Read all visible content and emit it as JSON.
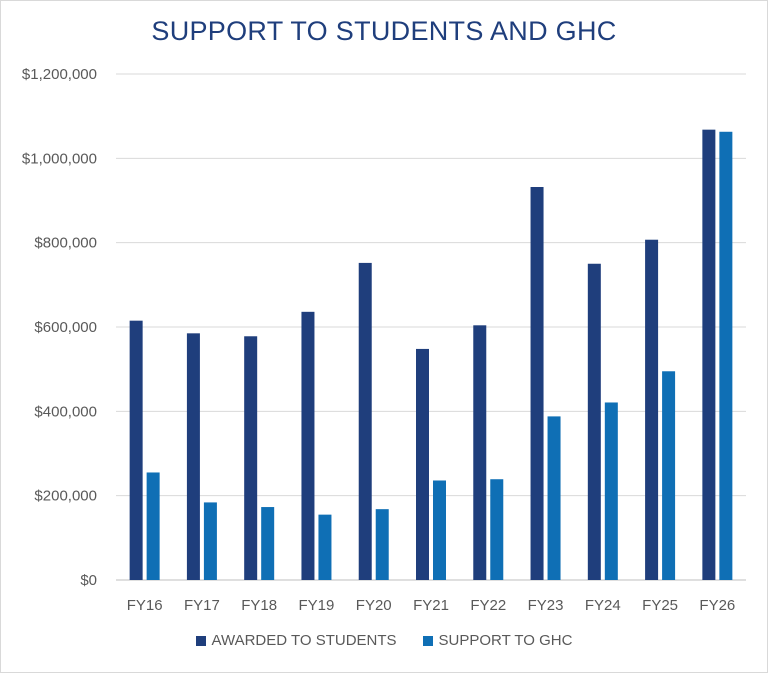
{
  "chart_data": {
    "type": "bar",
    "title": "SUPPORT TO STUDENTS AND GHC",
    "xlabel": "",
    "ylabel": "",
    "categories": [
      "FY16",
      "FY17",
      "FY18",
      "FY19",
      "FY20",
      "FY21",
      "FY22",
      "FY23",
      "FY24",
      "FY25",
      "FY26"
    ],
    "y_tick_labels": [
      "$0",
      "$200,000",
      "$400,000",
      "$600,000",
      "$800,000",
      "$1,000,000",
      "$1,200,000"
    ],
    "y_ticks": [
      0,
      200000,
      400000,
      600000,
      800000,
      1000000,
      1200000
    ],
    "ylim": [
      0,
      1200000
    ],
    "grid": true,
    "legend_position": "bottom",
    "series": [
      {
        "name": "AWARDED TO STUDENTS",
        "color": "#1f3e7c",
        "values": [
          615000,
          585000,
          578000,
          636000,
          752000,
          548000,
          604000,
          932000,
          750000,
          807000,
          1068000
        ]
      },
      {
        "name": "SUPPORT TO GHC",
        "color": "#0f6fb5",
        "values": [
          255000,
          184000,
          173000,
          155000,
          168000,
          236000,
          239000,
          388000,
          421000,
          495000,
          1063000
        ]
      }
    ]
  }
}
